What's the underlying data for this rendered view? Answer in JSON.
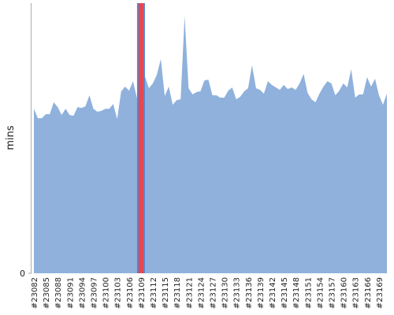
{
  "chart_data": {
    "type": "area",
    "y_label": "mins",
    "color": "#8fb1dc",
    "highlight_index": 27,
    "highlight_color": "#e8474f",
    "categories": [
      "#23082",
      null,
      null,
      "#23085",
      null,
      null,
      "#23088",
      null,
      null,
      "#23091",
      null,
      null,
      "#23094",
      null,
      null,
      "#23097",
      null,
      null,
      "#23100",
      null,
      null,
      "#23103",
      null,
      null,
      "#23106",
      null,
      null,
      "#23109",
      null,
      null,
      "#23112",
      null,
      null,
      "#23115",
      null,
      null,
      "#23118",
      null,
      null,
      "#23121",
      null,
      null,
      "#23124",
      null,
      null,
      "#23127",
      null,
      null,
      "#23130",
      null,
      null,
      "#23133",
      null,
      null,
      "#23136",
      null,
      null,
      "#23139",
      null,
      null,
      "#23142",
      null,
      null,
      "#23145",
      null,
      null,
      "#23148",
      null,
      null,
      "#23151",
      null,
      null,
      "#23154",
      null,
      null,
      "#23157",
      null,
      null,
      "#23160",
      null,
      null,
      "#23163",
      null,
      null,
      "#23166",
      null,
      null,
      "#23169",
      null,
      null
    ],
    "values": [
      60.9,
      57.4,
      57.4,
      58.9,
      58.9,
      63.3,
      61.5,
      58.6,
      60.9,
      58.6,
      58.3,
      61.5,
      61.2,
      61.8,
      65.9,
      60.9,
      59.8,
      60.1,
      60.9,
      60.9,
      62.7,
      57.1,
      67.3,
      69.1,
      67.6,
      71.1,
      64.7,
      67.6,
      72.9,
      68.5,
      70.3,
      73.5,
      79.3,
      65.6,
      69.1,
      62.4,
      64.1,
      64.4,
      95.3,
      68.5,
      66.2,
      67.1,
      67.4,
      71.4,
      71.7,
      65.9,
      65.9,
      65.0,
      65.0,
      67.6,
      68.8,
      64.4,
      65.3,
      67.3,
      68.5,
      77.0,
      68.5,
      67.9,
      66.5,
      71.1,
      69.7,
      68.8,
      67.9,
      69.7,
      68.2,
      68.8,
      67.9,
      70.3,
      73.8,
      66.8,
      64.4,
      63.3,
      66.5,
      69.1,
      71.1,
      70.3,
      65.9,
      67.6,
      70.3,
      68.8,
      75.5,
      65.0,
      66.2,
      66.2,
      72.6,
      69.1,
      72.0,
      65.9,
      62.4,
      66.5
    ],
    "ylim": [
      0,
      100
    ],
    "yticks": [
      0
    ]
  }
}
